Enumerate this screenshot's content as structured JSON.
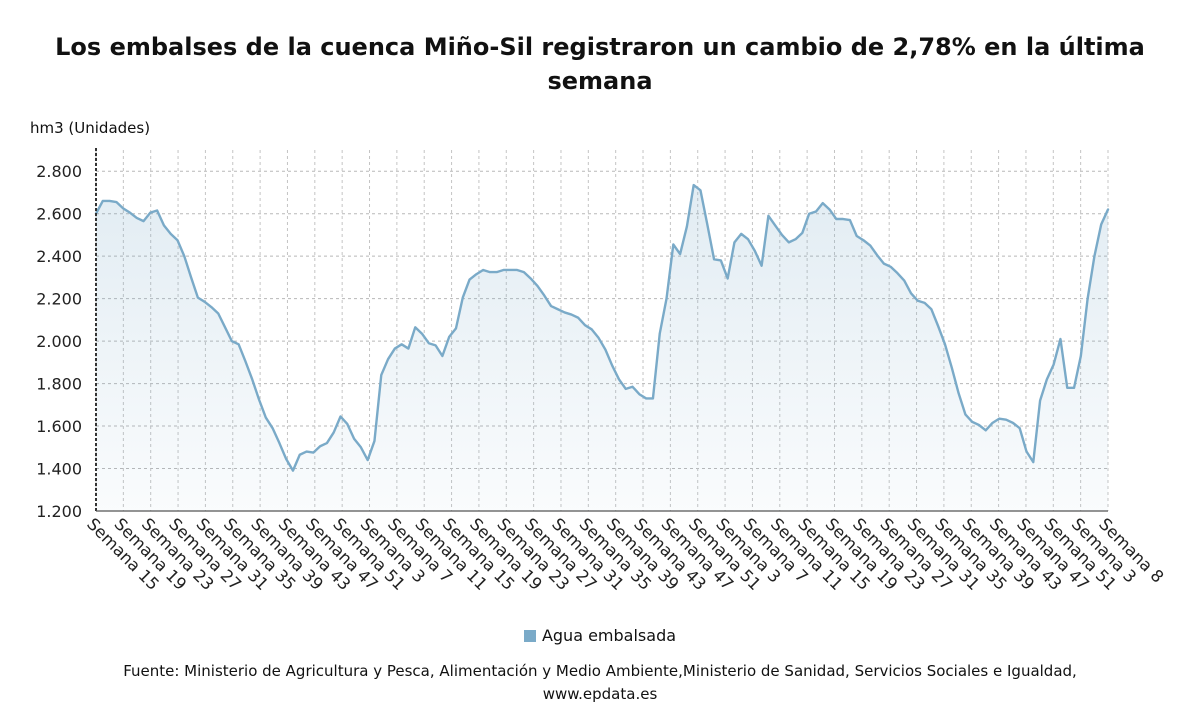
{
  "chart_data": {
    "type": "area",
    "title": "Los embalses de la cuenca Miño-Sil registraron un cambio de 2,78% en la última semana",
    "ylabel": "hm3 (Unidades)",
    "xlabel": "",
    "ylim": [
      1200,
      2900
    ],
    "yticks": [
      1200,
      1400,
      1600,
      1800,
      2000,
      2200,
      2400,
      2600,
      2800
    ],
    "ytick_labels": [
      "1.200",
      "1.400",
      "1.600",
      "1.800",
      "2.000",
      "2.200",
      "2.400",
      "2.600",
      "2.800"
    ],
    "x_tick_labels": [
      "Semana 15",
      "Semana 19",
      "Semana 23",
      "Semana 27",
      "Semana 31",
      "Semana 35",
      "Semana 39",
      "Semana 43",
      "Semana 47",
      "Semana 51",
      "Semana 3",
      "Semana 7",
      "Semana 11",
      "Semana 15",
      "Semana 19",
      "Semana 23",
      "Semana 27",
      "Semana 31",
      "Semana 35",
      "Semana 39",
      "Semana 43",
      "Semana 47",
      "Semana 51",
      "Semana 3",
      "Semana 7",
      "Semana 11",
      "Semana 15",
      "Semana 19",
      "Semana 23",
      "Semana 27",
      "Semana 31",
      "Semana 35",
      "Semana 39",
      "Semana 43",
      "Semana 47",
      "Semana 51",
      "Semana 3",
      "Semana 8"
    ],
    "grid": true,
    "legend_position": "bottom-center",
    "series": [
      {
        "name": "Agua embalsada",
        "color": "#7aaac8",
        "values": [
          2600,
          2660,
          2660,
          2655,
          2625,
          2605,
          2580,
          2565,
          2605,
          2615,
          2545,
          2505,
          2475,
          2400,
          2300,
          2205,
          2185,
          2160,
          2130,
          2065,
          2000,
          1985,
          1905,
          1820,
          1725,
          1640,
          1590,
          1520,
          1445,
          1390,
          1465,
          1480,
          1475,
          1505,
          1520,
          1570,
          1645,
          1610,
          1540,
          1500,
          1440,
          1530,
          1840,
          1915,
          1965,
          1985,
          1965,
          2065,
          2035,
          1990,
          1980,
          1930,
          2020,
          2060,
          2205,
          2290,
          2315,
          2335,
          2325,
          2325,
          2335,
          2335,
          2335,
          2325,
          2295,
          2260,
          2215,
          2165,
          2150,
          2135,
          2125,
          2110,
          2075,
          2055,
          2015,
          1960,
          1885,
          1820,
          1775,
          1785,
          1750,
          1730,
          1730,
          2035,
          2200,
          2455,
          2410,
          2540,
          2735,
          2710,
          2550,
          2385,
          2380,
          2295,
          2465,
          2505,
          2480,
          2425,
          2355,
          2590,
          2545,
          2500,
          2465,
          2480,
          2510,
          2600,
          2610,
          2650,
          2620,
          2575,
          2575,
          2570,
          2495,
          2475,
          2450,
          2405,
          2365,
          2350,
          2320,
          2285,
          2225,
          2190,
          2180,
          2150,
          2070,
          1985,
          1875,
          1755,
          1655,
          1620,
          1605,
          1580,
          1615,
          1635,
          1630,
          1615,
          1590,
          1480,
          1430,
          1720,
          1820,
          1890,
          2010,
          1780,
          1780,
          1930,
          2200,
          2400,
          2550,
          2620
        ]
      }
    ]
  },
  "legend": {
    "label": "Agua embalsada"
  },
  "source": {
    "line1": "Fuente: Ministerio de Agricultura y Pesca, Alimentación y Medio Ambiente,Ministerio de Sanidad, Servicios Sociales e Igualdad,",
    "line2": "www.epdata.es"
  }
}
